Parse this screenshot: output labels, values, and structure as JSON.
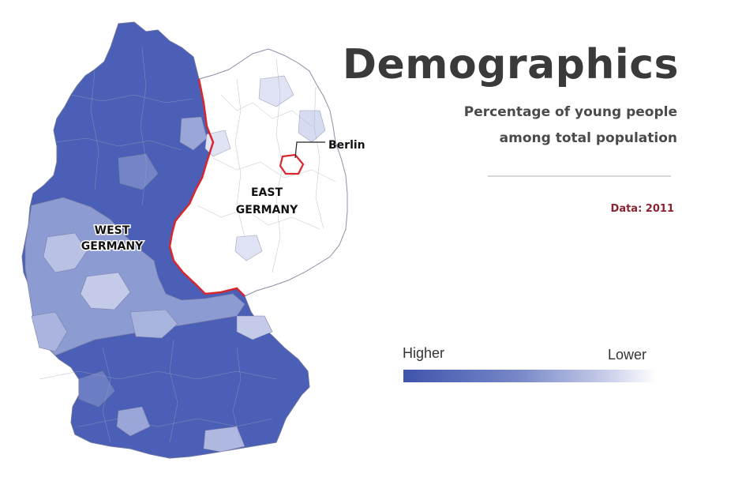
{
  "title": "Demographics",
  "subtitle_line1": "Percentage of young people",
  "subtitle_line2": "among total population",
  "data_year": "Data: 2011",
  "legend": {
    "higher_label": "Higher",
    "lower_label": "Lower",
    "colors": [
      "#3f55ab",
      "#7687c8",
      "#c7cde9",
      "#ffffff"
    ]
  },
  "map": {
    "labels": {
      "west_line1": "WEST",
      "west_line2": "GERMANY",
      "east_line1": "EAST",
      "east_line2": "GERMANY",
      "berlin": "Berlin"
    },
    "colors": {
      "high": "#3f55ab",
      "mid_high": "#5b6fc0",
      "mid": "#8696d0",
      "low": "#bcc5e6",
      "lowest": "#ffffff",
      "border_east_west": "#d9262e",
      "district_lines": "#8a8fa8"
    }
  }
}
